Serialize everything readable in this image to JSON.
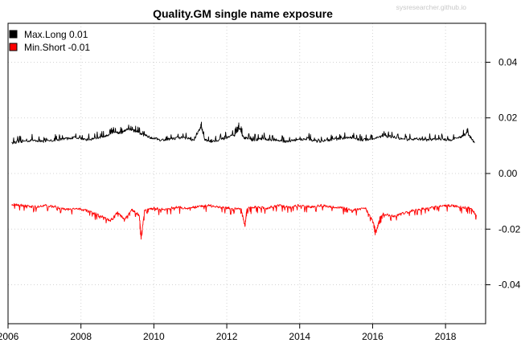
{
  "chart_data": {
    "type": "line",
    "title": "Quality.GM single name exposure",
    "watermark": "sysresearcher.github.io",
    "xlabel": "",
    "ylabel": "",
    "xlim": [
      2006,
      2019.1
    ],
    "ylim": [
      -0.054,
      0.054
    ],
    "x_ticks": [
      2006,
      2008,
      2010,
      2012,
      2014,
      2016,
      2018
    ],
    "x_tick_labels": [
      "2006",
      "2008",
      "2010",
      "2012",
      "2014",
      "2016",
      "2018"
    ],
    "y_ticks": [
      0.04,
      0.02,
      0.0,
      -0.02,
      -0.04
    ],
    "y_tick_labels": [
      "0.04",
      "0.02",
      "0.00",
      "-0.02",
      "-0.04"
    ],
    "y_axis_side": "right",
    "grid": true,
    "legend_position": "top-left",
    "legend": [
      {
        "label": "Max.Long  0.01",
        "color": "#000000"
      },
      {
        "label": "Min.Short -0.01",
        "color": "#ff0000"
      }
    ],
    "series": [
      {
        "name": "Max.Long",
        "color": "#000000",
        "x": [
          2006.1,
          2006.4,
          2006.7,
          2007.0,
          2007.3,
          2007.6,
          2007.9,
          2008.2,
          2008.5,
          2008.7,
          2008.9,
          2009.1,
          2009.3,
          2009.5,
          2009.7,
          2009.9,
          2010.2,
          2010.5,
          2010.8,
          2011.1,
          2011.3,
          2011.4,
          2011.6,
          2011.9,
          2012.2,
          2012.35,
          2012.45,
          2012.7,
          2013.0,
          2013.3,
          2013.6,
          2013.9,
          2014.2,
          2014.5,
          2014.8,
          2015.1,
          2015.4,
          2015.7,
          2016.0,
          2016.3,
          2016.6,
          2016.9,
          2017.2,
          2017.5,
          2017.8,
          2018.1,
          2018.4,
          2018.6,
          2018.8
        ],
        "values": [
          0.011,
          0.0115,
          0.012,
          0.0115,
          0.012,
          0.0125,
          0.013,
          0.012,
          0.013,
          0.0135,
          0.015,
          0.0145,
          0.016,
          0.015,
          0.014,
          0.013,
          0.012,
          0.0125,
          0.013,
          0.012,
          0.017,
          0.012,
          0.0115,
          0.0125,
          0.0135,
          0.0165,
          0.013,
          0.012,
          0.0125,
          0.012,
          0.0115,
          0.012,
          0.0125,
          0.0115,
          0.012,
          0.0125,
          0.013,
          0.012,
          0.0125,
          0.0135,
          0.013,
          0.012,
          0.0125,
          0.012,
          0.0125,
          0.012,
          0.013,
          0.0145,
          0.011
        ]
      },
      {
        "name": "Min.Short",
        "color": "#ff0000",
        "x": [
          2006.1,
          2006.4,
          2006.7,
          2007.0,
          2007.3,
          2007.6,
          2007.9,
          2008.2,
          2008.5,
          2008.8,
          2009.0,
          2009.2,
          2009.4,
          2009.6,
          2009.65,
          2009.75,
          2010.0,
          2010.3,
          2010.6,
          2010.9,
          2011.2,
          2011.5,
          2011.8,
          2012.1,
          2012.4,
          2012.5,
          2012.55,
          2012.8,
          2013.1,
          2013.4,
          2013.7,
          2014.0,
          2014.3,
          2014.6,
          2014.9,
          2015.2,
          2015.5,
          2015.8,
          2016.0,
          2016.1,
          2016.2,
          2016.3,
          2016.6,
          2016.9,
          2017.2,
          2017.5,
          2017.8,
          2018.1,
          2018.4,
          2018.7,
          2018.85
        ],
        "values": [
          -0.011,
          -0.0115,
          -0.012,
          -0.0115,
          -0.012,
          -0.013,
          -0.0125,
          -0.0135,
          -0.015,
          -0.017,
          -0.014,
          -0.0165,
          -0.013,
          -0.015,
          -0.023,
          -0.013,
          -0.0125,
          -0.013,
          -0.012,
          -0.0125,
          -0.012,
          -0.0115,
          -0.012,
          -0.0125,
          -0.013,
          -0.019,
          -0.0125,
          -0.012,
          -0.0125,
          -0.0115,
          -0.012,
          -0.0115,
          -0.012,
          -0.0115,
          -0.012,
          -0.0125,
          -0.013,
          -0.0125,
          -0.017,
          -0.021,
          -0.016,
          -0.0145,
          -0.0155,
          -0.014,
          -0.013,
          -0.0125,
          -0.012,
          -0.0115,
          -0.012,
          -0.0125,
          -0.015
        ]
      }
    ]
  }
}
